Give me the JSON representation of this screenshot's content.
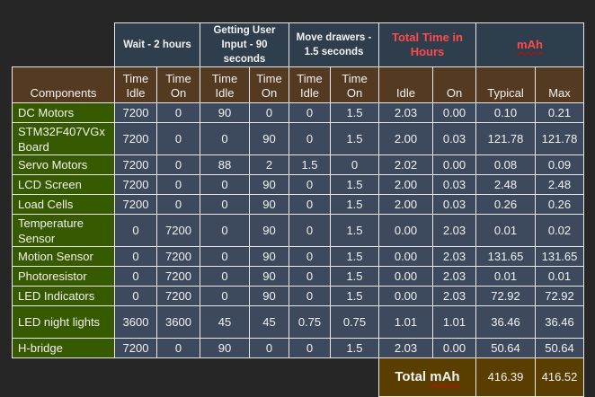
{
  "groups": [
    "Wait - 2 hours",
    "Getting User Input - 90 seconds",
    "Move drawers - 1.5 seconds",
    "Total Time in Hours",
    "mAh"
  ],
  "accent_color": "#ff4a4a",
  "subheaders": [
    "Components",
    "Time Idle",
    "Time On",
    "Time Idle",
    "Time On",
    "Time Idle",
    "Time On",
    "Idle",
    "On",
    "Typical",
    "Max"
  ],
  "rows": [
    {
      "name": "DC Motors",
      "values": [
        "7200",
        "0",
        "90",
        "0",
        "0",
        "1.5",
        "2.03",
        "0.00",
        "0.10",
        "0.21"
      ]
    },
    {
      "name": "STM32F407VGx Board",
      "values": [
        "7200",
        "0",
        "0",
        "90",
        "0",
        "1.5",
        "2.00",
        "0.03",
        "121.78",
        "121.78"
      ]
    },
    {
      "name": "Servo Motors",
      "values": [
        "7200",
        "0",
        "88",
        "2",
        "1.5",
        "0",
        "2.02",
        "0.00",
        "0.08",
        "0.09"
      ]
    },
    {
      "name": "LCD Screen",
      "values": [
        "7200",
        "0",
        "0",
        "90",
        "0",
        "1.5",
        "2.00",
        "0.03",
        "2.48",
        "2.48"
      ]
    },
    {
      "name": "Load Cells",
      "values": [
        "7200",
        "0",
        "0",
        "90",
        "0",
        "1.5",
        "2.00",
        "0.03",
        "0.26",
        "0.26"
      ]
    },
    {
      "name": "Temperature Sensor",
      "values": [
        "0",
        "7200",
        "0",
        "90",
        "0",
        "1.5",
        "0.00",
        "2.03",
        "0.01",
        "0.02"
      ]
    },
    {
      "name": "Motion Sensor",
      "values": [
        "0",
        "7200",
        "0",
        "90",
        "0",
        "1.5",
        "0.00",
        "2.03",
        "131.65",
        "131.65"
      ]
    },
    {
      "name": "Photoresistor",
      "values": [
        "0",
        "7200",
        "0",
        "90",
        "0",
        "1.5",
        "0.00",
        "2.03",
        "0.01",
        "0.01"
      ]
    },
    {
      "name": "LED Indicators",
      "values": [
        "0",
        "7200",
        "0",
        "90",
        "0",
        "1.5",
        "0.00",
        "2.03",
        "72.92",
        "72.92"
      ]
    },
    {
      "name": "LED night lights",
      "values": [
        "3600",
        "3600",
        "45",
        "45",
        "0.75",
        "0.75",
        "1.01",
        "1.01",
        "36.46",
        "36.46"
      ]
    },
    {
      "name": "H-bridge",
      "values": [
        "7200",
        "0",
        "90",
        "0",
        "0",
        "1.5",
        "2.03",
        "0.00",
        "50.64",
        "50.64"
      ]
    }
  ],
  "total": {
    "label": "Total mAh",
    "typical": "416.39",
    "max": "416.52"
  }
}
